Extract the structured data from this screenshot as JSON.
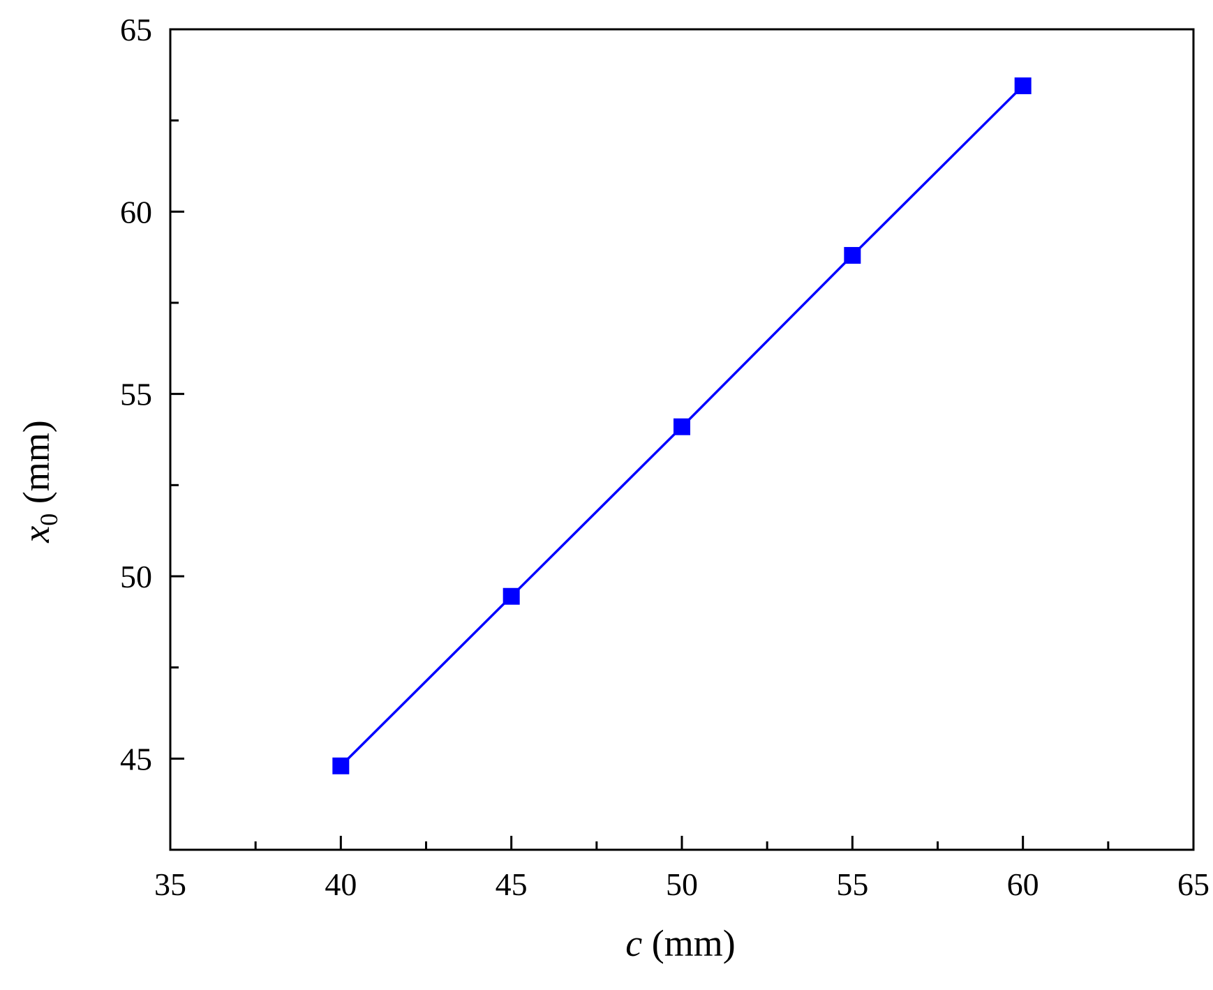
{
  "chart_data": {
    "type": "line",
    "xlabel": {
      "var": "c",
      "unit": " (mm)"
    },
    "ylabel": {
      "var": "x",
      "sub": "0",
      "unit": " (mm)"
    },
    "xlim": [
      35,
      65
    ],
    "ylim": [
      42.5,
      65
    ],
    "x_ticks": [
      35,
      40,
      45,
      50,
      55,
      60,
      65
    ],
    "x_minor_ticks": [
      37.5,
      42.5,
      47.5,
      52.5,
      57.5,
      62.5
    ],
    "y_ticks": [
      45,
      50,
      55,
      60,
      65
    ],
    "y_minor_ticks": [
      47.5,
      52.5,
      57.5,
      62.5
    ],
    "grid": false,
    "series": [
      {
        "marker": "square",
        "color": "#0000ff",
        "x": [
          40,
          45,
          50,
          55,
          60
        ],
        "y": [
          44.8,
          49.45,
          54.1,
          58.8,
          63.45
        ]
      }
    ]
  }
}
